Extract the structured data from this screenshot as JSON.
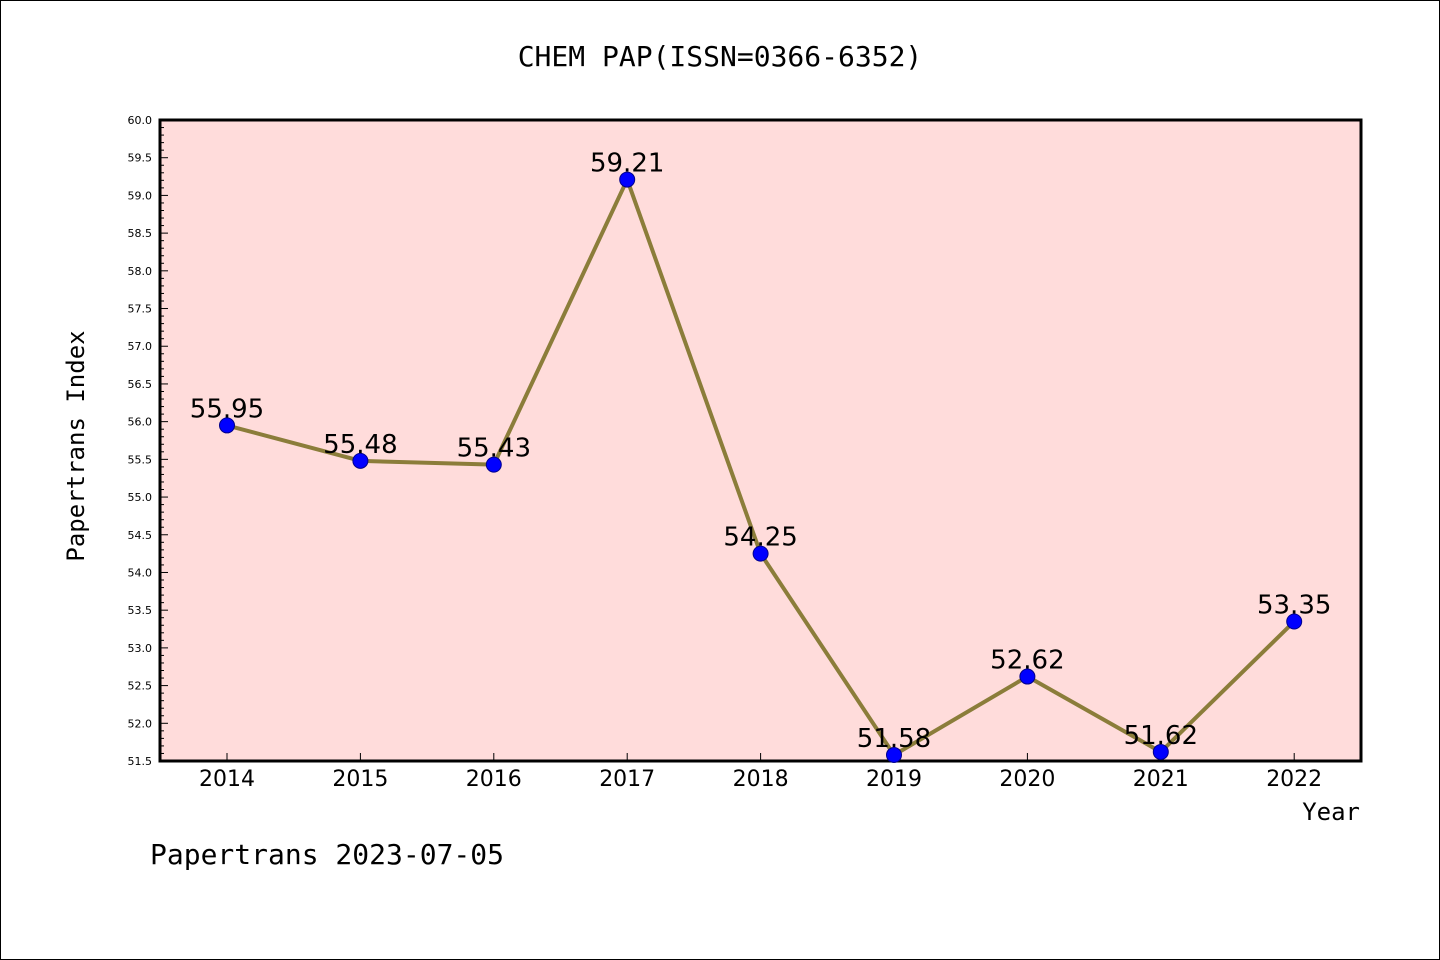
{
  "chart_data": {
    "type": "line",
    "title": "CHEM PAP(ISSN=0366-6352)",
    "xlabel": "Year",
    "ylabel": "Papertrans Index",
    "categories": [
      "2014",
      "2015",
      "2016",
      "2017",
      "2018",
      "2019",
      "2020",
      "2021",
      "2022"
    ],
    "values": [
      55.95,
      55.48,
      55.43,
      59.21,
      54.25,
      51.58,
      52.62,
      51.62,
      53.35
    ],
    "data_labels": [
      "55.95",
      "55.48",
      "55.43",
      "59.21",
      "54.25",
      "51.58",
      "52.62",
      "51.62",
      "53.35"
    ],
    "ylim": [
      51.5,
      60.0
    ],
    "yticks": [
      "51.5",
      "52.0",
      "52.5",
      "53.0",
      "53.5",
      "54.0",
      "54.5",
      "55.0",
      "55.5",
      "56.0",
      "56.5",
      "57.0",
      "57.5",
      "58.0",
      "58.5",
      "59.0",
      "59.5",
      "60.0"
    ],
    "grid": false,
    "colors": {
      "plot_background": "#ffdcdb",
      "line": "#8b7d3a",
      "marker": "#0000ff"
    }
  },
  "footer": {
    "source": "Papertrans 2023-07-05"
  }
}
